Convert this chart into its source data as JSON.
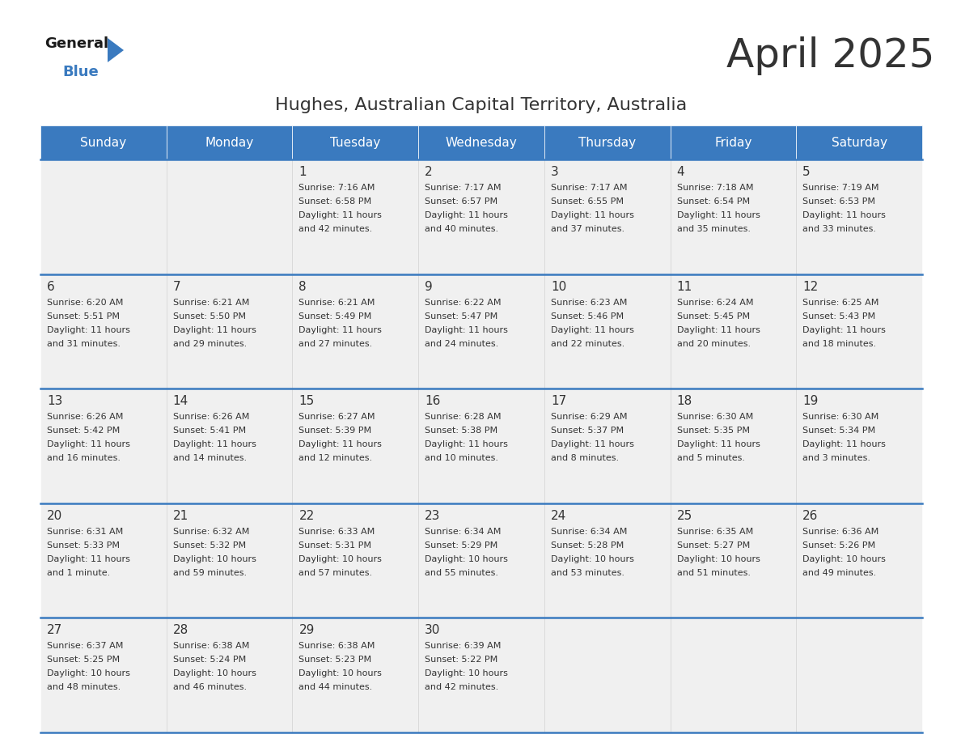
{
  "title": "April 2025",
  "subtitle": "Hughes, Australian Capital Territory, Australia",
  "header_color": "#3a7abf",
  "header_text_color": "#ffffff",
  "day_names": [
    "Sunday",
    "Monday",
    "Tuesday",
    "Wednesday",
    "Thursday",
    "Friday",
    "Saturday"
  ],
  "bg_color": "#ffffff",
  "cell_bg_color": "#f0f0f0",
  "border_color": "#3a7abf",
  "text_color": "#333333",
  "days": [
    {
      "date": 1,
      "col": 2,
      "row": 0,
      "sunrise": "7:16 AM",
      "sunset": "6:58 PM",
      "daylight_h": "11 hours",
      "daylight_m": "42 minutes."
    },
    {
      "date": 2,
      "col": 3,
      "row": 0,
      "sunrise": "7:17 AM",
      "sunset": "6:57 PM",
      "daylight_h": "11 hours",
      "daylight_m": "40 minutes."
    },
    {
      "date": 3,
      "col": 4,
      "row": 0,
      "sunrise": "7:17 AM",
      "sunset": "6:55 PM",
      "daylight_h": "11 hours",
      "daylight_m": "37 minutes."
    },
    {
      "date": 4,
      "col": 5,
      "row": 0,
      "sunrise": "7:18 AM",
      "sunset": "6:54 PM",
      "daylight_h": "11 hours",
      "daylight_m": "35 minutes."
    },
    {
      "date": 5,
      "col": 6,
      "row": 0,
      "sunrise": "7:19 AM",
      "sunset": "6:53 PM",
      "daylight_h": "11 hours",
      "daylight_m": "33 minutes."
    },
    {
      "date": 6,
      "col": 0,
      "row": 1,
      "sunrise": "6:20 AM",
      "sunset": "5:51 PM",
      "daylight_h": "11 hours",
      "daylight_m": "31 minutes."
    },
    {
      "date": 7,
      "col": 1,
      "row": 1,
      "sunrise": "6:21 AM",
      "sunset": "5:50 PM",
      "daylight_h": "11 hours",
      "daylight_m": "29 minutes."
    },
    {
      "date": 8,
      "col": 2,
      "row": 1,
      "sunrise": "6:21 AM",
      "sunset": "5:49 PM",
      "daylight_h": "11 hours",
      "daylight_m": "27 minutes."
    },
    {
      "date": 9,
      "col": 3,
      "row": 1,
      "sunrise": "6:22 AM",
      "sunset": "5:47 PM",
      "daylight_h": "11 hours",
      "daylight_m": "24 minutes."
    },
    {
      "date": 10,
      "col": 4,
      "row": 1,
      "sunrise": "6:23 AM",
      "sunset": "5:46 PM",
      "daylight_h": "11 hours",
      "daylight_m": "22 minutes."
    },
    {
      "date": 11,
      "col": 5,
      "row": 1,
      "sunrise": "6:24 AM",
      "sunset": "5:45 PM",
      "daylight_h": "11 hours",
      "daylight_m": "20 minutes."
    },
    {
      "date": 12,
      "col": 6,
      "row": 1,
      "sunrise": "6:25 AM",
      "sunset": "5:43 PM",
      "daylight_h": "11 hours",
      "daylight_m": "18 minutes."
    },
    {
      "date": 13,
      "col": 0,
      "row": 2,
      "sunrise": "6:26 AM",
      "sunset": "5:42 PM",
      "daylight_h": "11 hours",
      "daylight_m": "16 minutes."
    },
    {
      "date": 14,
      "col": 1,
      "row": 2,
      "sunrise": "6:26 AM",
      "sunset": "5:41 PM",
      "daylight_h": "11 hours",
      "daylight_m": "14 minutes."
    },
    {
      "date": 15,
      "col": 2,
      "row": 2,
      "sunrise": "6:27 AM",
      "sunset": "5:39 PM",
      "daylight_h": "11 hours",
      "daylight_m": "12 minutes."
    },
    {
      "date": 16,
      "col": 3,
      "row": 2,
      "sunrise": "6:28 AM",
      "sunset": "5:38 PM",
      "daylight_h": "11 hours",
      "daylight_m": "10 minutes."
    },
    {
      "date": 17,
      "col": 4,
      "row": 2,
      "sunrise": "6:29 AM",
      "sunset": "5:37 PM",
      "daylight_h": "11 hours",
      "daylight_m": "8 minutes."
    },
    {
      "date": 18,
      "col": 5,
      "row": 2,
      "sunrise": "6:30 AM",
      "sunset": "5:35 PM",
      "daylight_h": "11 hours",
      "daylight_m": "5 minutes."
    },
    {
      "date": 19,
      "col": 6,
      "row": 2,
      "sunrise": "6:30 AM",
      "sunset": "5:34 PM",
      "daylight_h": "11 hours",
      "daylight_m": "3 minutes."
    },
    {
      "date": 20,
      "col": 0,
      "row": 3,
      "sunrise": "6:31 AM",
      "sunset": "5:33 PM",
      "daylight_h": "11 hours",
      "daylight_m": "1 minute."
    },
    {
      "date": 21,
      "col": 1,
      "row": 3,
      "sunrise": "6:32 AM",
      "sunset": "5:32 PM",
      "daylight_h": "10 hours",
      "daylight_m": "59 minutes."
    },
    {
      "date": 22,
      "col": 2,
      "row": 3,
      "sunrise": "6:33 AM",
      "sunset": "5:31 PM",
      "daylight_h": "10 hours",
      "daylight_m": "57 minutes."
    },
    {
      "date": 23,
      "col": 3,
      "row": 3,
      "sunrise": "6:34 AM",
      "sunset": "5:29 PM",
      "daylight_h": "10 hours",
      "daylight_m": "55 minutes."
    },
    {
      "date": 24,
      "col": 4,
      "row": 3,
      "sunrise": "6:34 AM",
      "sunset": "5:28 PM",
      "daylight_h": "10 hours",
      "daylight_m": "53 minutes."
    },
    {
      "date": 25,
      "col": 5,
      "row": 3,
      "sunrise": "6:35 AM",
      "sunset": "5:27 PM",
      "daylight_h": "10 hours",
      "daylight_m": "51 minutes."
    },
    {
      "date": 26,
      "col": 6,
      "row": 3,
      "sunrise": "6:36 AM",
      "sunset": "5:26 PM",
      "daylight_h": "10 hours",
      "daylight_m": "49 minutes."
    },
    {
      "date": 27,
      "col": 0,
      "row": 4,
      "sunrise": "6:37 AM",
      "sunset": "5:25 PM",
      "daylight_h": "10 hours",
      "daylight_m": "48 minutes."
    },
    {
      "date": 28,
      "col": 1,
      "row": 4,
      "sunrise": "6:38 AM",
      "sunset": "5:24 PM",
      "daylight_h": "10 hours",
      "daylight_m": "46 minutes."
    },
    {
      "date": 29,
      "col": 2,
      "row": 4,
      "sunrise": "6:38 AM",
      "sunset": "5:23 PM",
      "daylight_h": "10 hours",
      "daylight_m": "44 minutes."
    },
    {
      "date": 30,
      "col": 3,
      "row": 4,
      "sunrise": "6:39 AM",
      "sunset": "5:22 PM",
      "daylight_h": "10 hours",
      "daylight_m": "42 minutes."
    }
  ],
  "logo_text_general": "General",
  "logo_text_blue": "Blue",
  "logo_color_general": "#1a1a1a",
  "logo_color_blue": "#3a7abf",
  "title_fontsize": 36,
  "subtitle_fontsize": 16,
  "header_fontsize": 11,
  "date_fontsize": 11,
  "cell_fontsize": 8
}
